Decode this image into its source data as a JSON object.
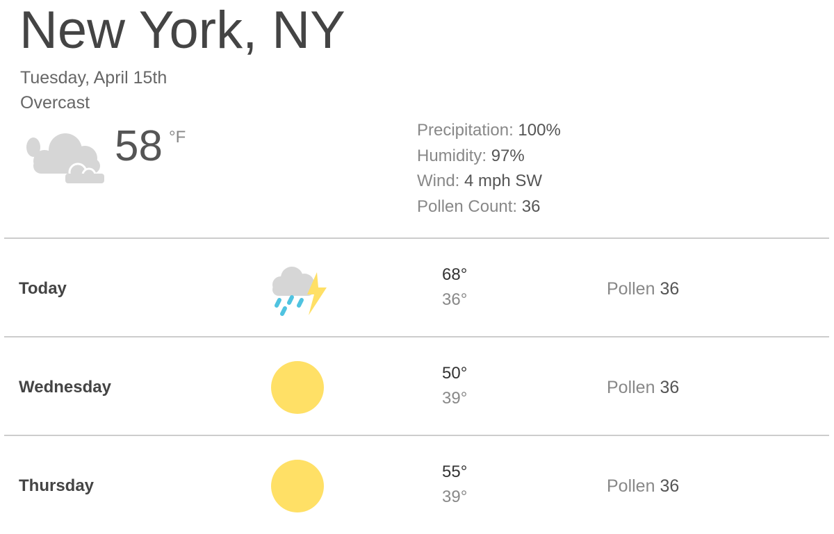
{
  "location": "New York, NY",
  "date": "Tuesday, April 15th",
  "condition": "Overcast",
  "current": {
    "temp": "58",
    "unit": "°F",
    "icon": "cloudy-icon"
  },
  "details": [
    {
      "label": "Precipitation:",
      "value": "100%"
    },
    {
      "label": "Humidity:",
      "value": "97%"
    },
    {
      "label": "Wind:",
      "value": "4 mph SW"
    },
    {
      "label": "Pollen Count:",
      "value": "36"
    }
  ],
  "forecast": [
    {
      "day": "Today",
      "icon": "thunderstorm-icon",
      "high": "68°",
      "low": "36°",
      "pollen_label": "Pollen",
      "pollen": "36"
    },
    {
      "day": "Wednesday",
      "icon": "sun-icon",
      "high": "50°",
      "low": "39°",
      "pollen_label": "Pollen",
      "pollen": "36"
    },
    {
      "day": "Thursday",
      "icon": "sun-icon",
      "high": "55°",
      "low": "39°",
      "pollen_label": "Pollen",
      "pollen": "36"
    }
  ],
  "colors": {
    "sun": "#ffe066",
    "rain": "#4fc3e0",
    "bolt": "#ffe066",
    "cloud": "#d6d6d6"
  }
}
